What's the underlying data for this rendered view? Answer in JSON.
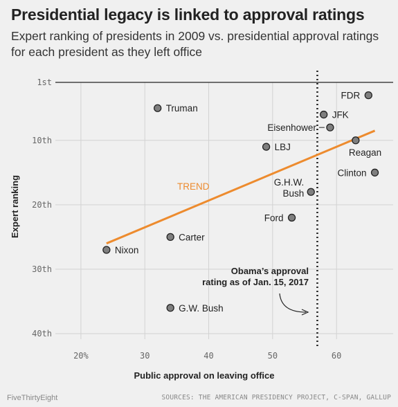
{
  "header": {
    "title": "Presidential legacy is linked to approval ratings",
    "subtitle": "Expert ranking of presidents in 2009 vs. presidential approval ratings for each president as they left office"
  },
  "footer": {
    "brand": "FiveThirtyEight",
    "sources": "SOURCES: THE AMERICAN PRESIDENCY PROJECT, C-SPAN, GALLUP"
  },
  "chart_data": {
    "type": "scatter",
    "xlabel": "Public approval on leaving office",
    "ylabel": "Expert ranking",
    "xlim": [
      16,
      68
    ],
    "ylim": [
      1,
      40
    ],
    "y_inverted": true,
    "grid": true,
    "x_ticks": [
      {
        "value": 20,
        "label": "20%"
      },
      {
        "value": 30,
        "label": "30"
      },
      {
        "value": 40,
        "label": "40"
      },
      {
        "value": 50,
        "label": "50"
      },
      {
        "value": 60,
        "label": "60"
      }
    ],
    "y_ticks": [
      {
        "value": 1,
        "label": "1st"
      },
      {
        "value": 10,
        "label": "10th"
      },
      {
        "value": 20,
        "label": "20th"
      },
      {
        "value": 30,
        "label": "30th"
      },
      {
        "value": 40,
        "label": "40th"
      }
    ],
    "points": [
      {
        "label": "FDR",
        "x": 65,
        "y": 3,
        "label_pos": "left"
      },
      {
        "label": "JFK",
        "x": 58,
        "y": 6,
        "label_pos": "right"
      },
      {
        "label": "Eisenhower",
        "x": 59,
        "y": 8,
        "label_pos": "left-dash"
      },
      {
        "label": "Truman",
        "x": 32,
        "y": 5,
        "label_pos": "right"
      },
      {
        "label": "Reagan",
        "x": 63,
        "y": 10,
        "label_pos": "below-right"
      },
      {
        "label": "LBJ",
        "x": 49,
        "y": 11,
        "label_pos": "right"
      },
      {
        "label": "Clinton",
        "x": 66,
        "y": 15,
        "label_pos": "left"
      },
      {
        "label": "G.H.W. Bush",
        "x": 56,
        "y": 18,
        "label_pos": "left-two-line"
      },
      {
        "label": "Ford",
        "x": 53,
        "y": 22,
        "label_pos": "left"
      },
      {
        "label": "Carter",
        "x": 34,
        "y": 25,
        "label_pos": "right"
      },
      {
        "label": "Nixon",
        "x": 24,
        "y": 27,
        "label_pos": "right"
      },
      {
        "label": "G.W. Bush",
        "x": 34,
        "y": 36,
        "label_pos": "right"
      }
    ],
    "trend": {
      "label": "TREND",
      "x1": 24,
      "y1": 26,
      "x2": 66,
      "y2": 8.5,
      "color": "#ed8b2e"
    },
    "reference_line": {
      "x": 57,
      "label_line1": "Obama’s approval",
      "label_line2": "rating as of Jan. 15, 2017"
    },
    "colors": {
      "point_fill": "#7f7f7f",
      "point_stroke": "#222222",
      "trend": "#ed8b2e",
      "grid": "#d2d2d2"
    }
  }
}
